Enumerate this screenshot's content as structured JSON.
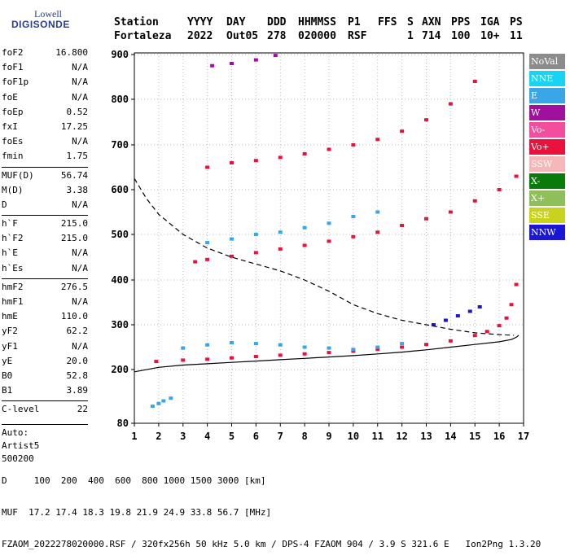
{
  "logo": {
    "line1": "Lowell",
    "line2": "DIGISONDE"
  },
  "header": {
    "labels": [
      "Station",
      "YYYY",
      "DAY",
      "DDD",
      "HHMMSS",
      "P1",
      "FFS",
      "S",
      "AXN",
      "PPS",
      "IGA",
      "PS"
    ],
    "values": [
      "Fortaleza",
      "2022",
      "Out05",
      "278",
      "020000",
      "RSF",
      "",
      "1",
      "714",
      "100",
      "10+",
      "11"
    ]
  },
  "params": [
    {
      "label": "foF2",
      "value": "16.800"
    },
    {
      "label": "foF1",
      "value": "N/A"
    },
    {
      "label": "foF1p",
      "value": "N/A"
    },
    {
      "label": "foE",
      "value": "N/A"
    },
    {
      "label": "foEp",
      "value": "0.52"
    },
    {
      "label": "fxI",
      "value": "17.25"
    },
    {
      "label": "foEs",
      "value": "N/A"
    },
    {
      "label": "fmin",
      "value": "1.75"
    },
    {
      "label": "MUF(D)",
      "value": "56.74",
      "sep": true
    },
    {
      "label": "M(D)",
      "value": "3.38"
    },
    {
      "label": "D",
      "value": "N/A"
    },
    {
      "label": "h`F",
      "value": "215.0",
      "sep": true
    },
    {
      "label": "h`F2",
      "value": "215.0"
    },
    {
      "label": "h`E",
      "value": "N/A"
    },
    {
      "label": "h`Es",
      "value": "N/A"
    },
    {
      "label": "hmF2",
      "value": "276.5",
      "sep": true
    },
    {
      "label": "hmF1",
      "value": "N/A"
    },
    {
      "label": "hmE",
      "value": "110.0"
    },
    {
      "label": "yF2",
      "value": "62.2"
    },
    {
      "label": "yF1",
      "value": "N/A"
    },
    {
      "label": "yE",
      "value": "20.0"
    },
    {
      "label": "B0",
      "value": "52.8"
    },
    {
      "label": "B1",
      "value": "3.89"
    },
    {
      "label": "C-level",
      "value": "22",
      "sep": true
    }
  ],
  "auto": {
    "line1": "Auto:",
    "line2": "Artist5",
    "line3": "500200"
  },
  "footer": {
    "d_row": "D     100  200  400  600  800 1000 1500 3000 [km]",
    "muf_row": "MUF  17.2 17.4 18.3 19.8 21.9 24.9 33.8 56.7 [MHz]",
    "file_row": "FZAOM_2022278020000.RSF / 320fx256h 50 kHz 5.0 km / DPS-4 FZAOM 904 / 3.9 S 321.6 E   Ion2Png 1.3.20"
  },
  "legend": [
    {
      "label": "NoVal",
      "color": "#8c8c8c"
    },
    {
      "label": "NNE",
      "color": "#17d3f5"
    },
    {
      "label": "E",
      "color": "#3aa6e8"
    },
    {
      "label": "W",
      "color": "#a0109e"
    },
    {
      "label": "Vo-",
      "color": "#f24e9d"
    },
    {
      "label": "Vo+",
      "color": "#e8123c"
    },
    {
      "label": "SSW",
      "color": "#f5b7b7"
    },
    {
      "label": "X-",
      "color": "#0a7a0a"
    },
    {
      "label": "X+",
      "color": "#8fbf5a"
    },
    {
      "label": "SSE",
      "color": "#c9d21c"
    },
    {
      "label": "NNW",
      "color": "#1b16d6"
    }
  ],
  "chart_data": {
    "type": "scatter",
    "xlim": [
      1,
      17
    ],
    "ylim": [
      80,
      900
    ],
    "x_ticks": [
      1,
      2,
      3,
      4,
      5,
      6,
      7,
      8,
      9,
      10,
      11,
      12,
      13,
      14,
      15,
      16,
      17
    ],
    "y_ticks": [
      80,
      200,
      300,
      400,
      500,
      600,
      700,
      800,
      900
    ],
    "grid": true,
    "legend_position": "right",
    "series": [
      {
        "color": "#3aa6e8",
        "x": [
          1.75,
          2.0,
          2.2,
          2.5
        ],
        "y": [
          118,
          124,
          130,
          136
        ]
      },
      {
        "color": "#e8123c",
        "x": [
          1.9,
          3,
          4,
          5,
          6,
          7,
          8,
          9,
          10,
          11,
          12,
          13,
          14,
          15,
          15.5,
          16,
          16.3,
          16.5,
          16.7
        ],
        "y": [
          218,
          221,
          223,
          226,
          229,
          232,
          235,
          238,
          241,
          245,
          250,
          256,
          264,
          276,
          285,
          298,
          315,
          345,
          390
        ]
      },
      {
        "color": "#3aa6e8",
        "x": [
          3,
          4,
          5,
          6,
          7,
          8,
          9,
          10,
          11,
          12
        ],
        "y": [
          248,
          255,
          260,
          258,
          255,
          250,
          248,
          245,
          250,
          258
        ]
      },
      {
        "color": "#1b16d6",
        "x": [
          13.3,
          13.8,
          14.3,
          14.8,
          15.2
        ],
        "y": [
          300,
          310,
          320,
          330,
          340
        ]
      },
      {
        "color": "#e8123c",
        "x": [
          3.5,
          4,
          5,
          6,
          7,
          8,
          9,
          10,
          11,
          12,
          13,
          14,
          15,
          16,
          16.7
        ],
        "y": [
          440,
          445,
          452,
          460,
          468,
          476,
          485,
          495,
          505,
          520,
          535,
          550,
          575,
          600,
          630
        ]
      },
      {
        "color": "#3aa6e8",
        "x": [
          4,
          5,
          6,
          7,
          8,
          9,
          10,
          11
        ],
        "y": [
          482,
          490,
          500,
          505,
          515,
          525,
          540,
          550
        ]
      },
      {
        "color": "#e8123c",
        "x": [
          4,
          5,
          6,
          7,
          8,
          9,
          10,
          11,
          12,
          13,
          14,
          15
        ],
        "y": [
          650,
          660,
          665,
          672,
          680,
          690,
          700,
          712,
          730,
          755,
          790,
          840
        ]
      },
      {
        "color": "#a0109e",
        "x": [
          4.2,
          5,
          6,
          6.8
        ],
        "y": [
          875,
          880,
          888,
          898
        ]
      }
    ],
    "curves": [
      {
        "style": "dashed",
        "x": [
          1,
          1.5,
          2,
          3,
          4,
          5,
          6,
          7,
          8,
          9,
          10,
          11,
          12,
          13,
          14,
          15,
          16,
          16.6
        ],
        "y": [
          625,
          580,
          545,
          500,
          470,
          450,
          435,
          420,
          400,
          375,
          345,
          325,
          310,
          300,
          290,
          282,
          278,
          276.5
        ]
      },
      {
        "style": "solid",
        "x": [
          1,
          2,
          3,
          4,
          5,
          6,
          7,
          8,
          9,
          10,
          11,
          12,
          13,
          14,
          15,
          16,
          16.5,
          16.7,
          16.8
        ],
        "y": [
          195,
          205,
          210,
          213,
          216,
          219,
          222,
          225,
          228,
          231,
          235,
          239,
          244,
          250,
          256,
          262,
          267,
          272,
          276.5
        ]
      }
    ]
  }
}
